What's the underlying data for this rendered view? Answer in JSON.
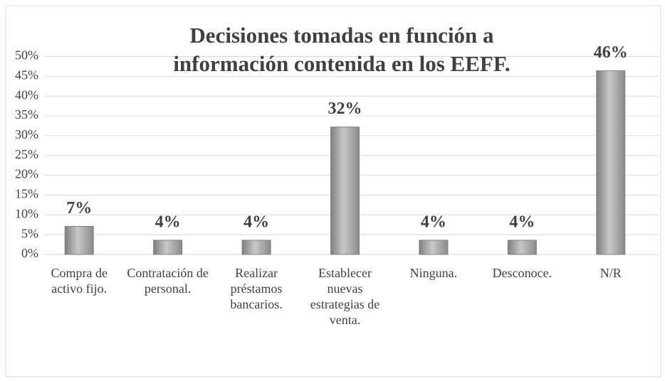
{
  "chart_data": {
    "type": "bar",
    "title": "Decisiones tomadas en función a información contenida en los EEFF.",
    "categories": [
      "Compra de activo fijo.",
      "Contratación de personal.",
      "Realizar préstamos bancarios.",
      "Establecer nuevas estrategias de venta.",
      "Ninguna.",
      "Desconoce.",
      "N/R"
    ],
    "values": [
      7.1,
      3.6,
      3.6,
      32.2,
      3.6,
      3.6,
      46.4
    ],
    "value_labels": [
      "7%",
      "4%",
      "4%",
      "32%",
      "4%",
      "4%",
      "46%"
    ],
    "color": "#a6a6a6",
    "ylim": [
      0,
      50
    ],
    "yticks": [
      {
        "value": 0,
        "label": "0%"
      },
      {
        "value": 5,
        "label": "5%"
      },
      {
        "value": 10,
        "label": "10%"
      },
      {
        "value": 15,
        "label": "15%"
      },
      {
        "value": 20,
        "label": "20%"
      },
      {
        "value": 25,
        "label": "25%"
      },
      {
        "value": 30,
        "label": "30%"
      },
      {
        "value": 35,
        "label": "35%"
      },
      {
        "value": 40,
        "label": "40%"
      },
      {
        "value": 45,
        "label": "45%"
      },
      {
        "value": 50,
        "label": "50%"
      }
    ],
    "grid": true
  }
}
